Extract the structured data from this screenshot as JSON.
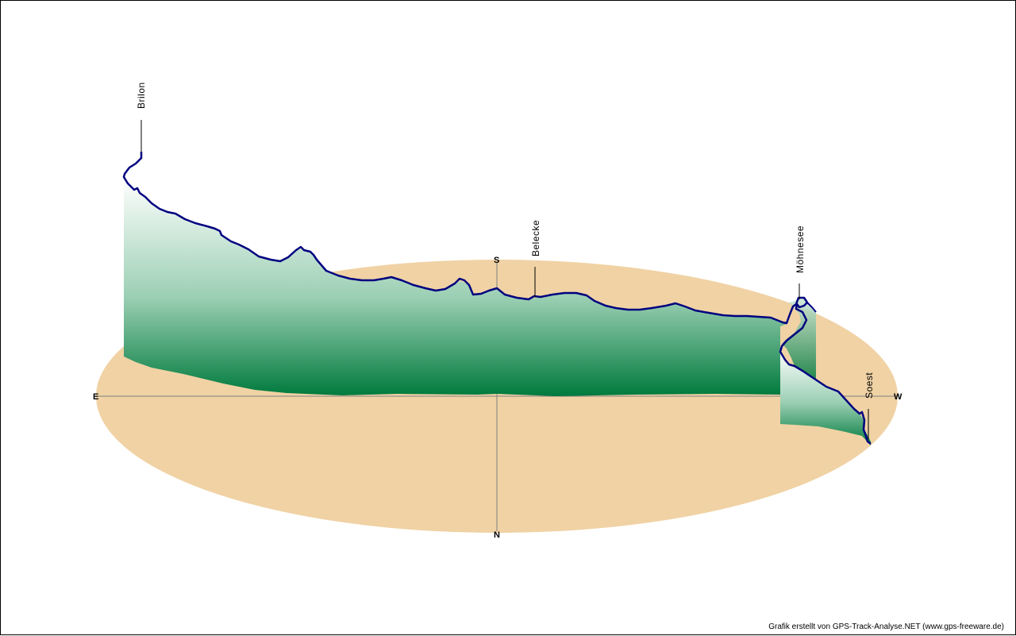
{
  "credit": "Grafik erstellt von GPS-Track-Analyse.NET (www.gps-freeware.de)",
  "compass": {
    "east": "E",
    "west": "W",
    "south": "S",
    "north": "N"
  },
  "waypoints": [
    {
      "name": "Brilon"
    },
    {
      "name": "Belecke"
    },
    {
      "name": "Möhnesee"
    },
    {
      "name": "Soest"
    }
  ],
  "colors": {
    "ground": "#F0D2A4",
    "axis": "#808080",
    "track": "#000080",
    "wall_top": "#FFFFFF",
    "wall_bottom": "#007A3D",
    "leader": "#000000"
  }
}
